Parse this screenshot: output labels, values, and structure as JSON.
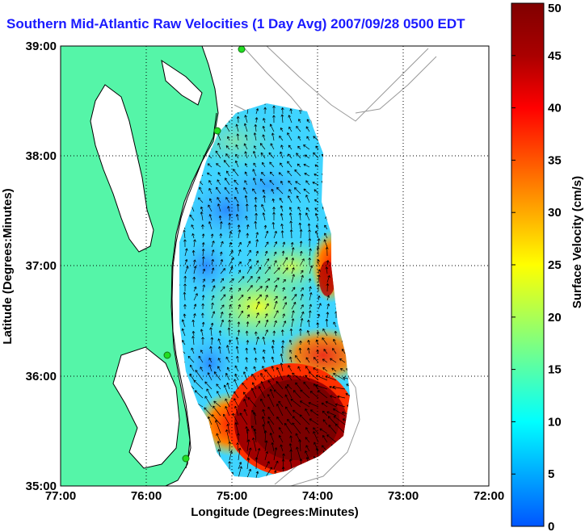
{
  "title": "Southern Mid-Atlantic Raw Velocities (1 Day Avg) 2007/09/28 0500 EDT",
  "xlabel": "Longitude (Degrees:Minutes)",
  "ylabel": "Latitude (Degrees:Minutes)",
  "x_ticks": [
    "77:00",
    "76:00",
    "75:00",
    "74:00",
    "73:00",
    "72:00"
  ],
  "y_ticks": [
    "39:00",
    "38:00",
    "37:00",
    "36:00",
    "35:00"
  ],
  "colorbar": {
    "label": "Surface Velocity (cm/s)",
    "ticks": [
      "0",
      "5",
      "10",
      "15",
      "20",
      "25",
      "30",
      "35",
      "40",
      "45",
      "50"
    ],
    "range": [
      0,
      50
    ],
    "colors": [
      "#0055ff",
      "#00aaff",
      "#00ffff",
      "#55ffaa",
      "#aaff55",
      "#ffff00",
      "#ffaa00",
      "#ff5500",
      "#ff0000",
      "#aa0000",
      "#800000"
    ]
  },
  "colors": {
    "land": "#55f5a8",
    "coast": "#000000",
    "bathymetry": "#999999",
    "grid": "#000000",
    "station": "#22dd22"
  },
  "chart_data": {
    "type": "heatmap",
    "title": "Southern Mid-Atlantic Raw Velocities (1 Day Avg) 2007/09/28 0500 EDT",
    "xlabel": "Longitude (Degrees:Minutes)",
    "ylabel": "Latitude (Degrees:Minutes)",
    "xlim": [
      -77,
      -72
    ],
    "ylim": [
      35,
      39
    ],
    "grid": true,
    "value_range": [
      0,
      50
    ],
    "regions": [
      {
        "lon": -74.5,
        "lat": 35.5,
        "speed": 50
      },
      {
        "lon": -74.9,
        "lat": 35.3,
        "speed": 40
      },
      {
        "lon": -74.05,
        "lat": 36.9,
        "speed": 45
      },
      {
        "lon": -74.6,
        "lat": 36.7,
        "speed": 22
      },
      {
        "lon": -74.8,
        "lat": 37.6,
        "speed": 10
      },
      {
        "lon": -75.1,
        "lat": 36.9,
        "speed": 8
      },
      {
        "lon": -75.1,
        "lat": 36.1,
        "speed": 10
      },
      {
        "lon": -74.6,
        "lat": 38.2,
        "speed": 14
      }
    ]
  }
}
